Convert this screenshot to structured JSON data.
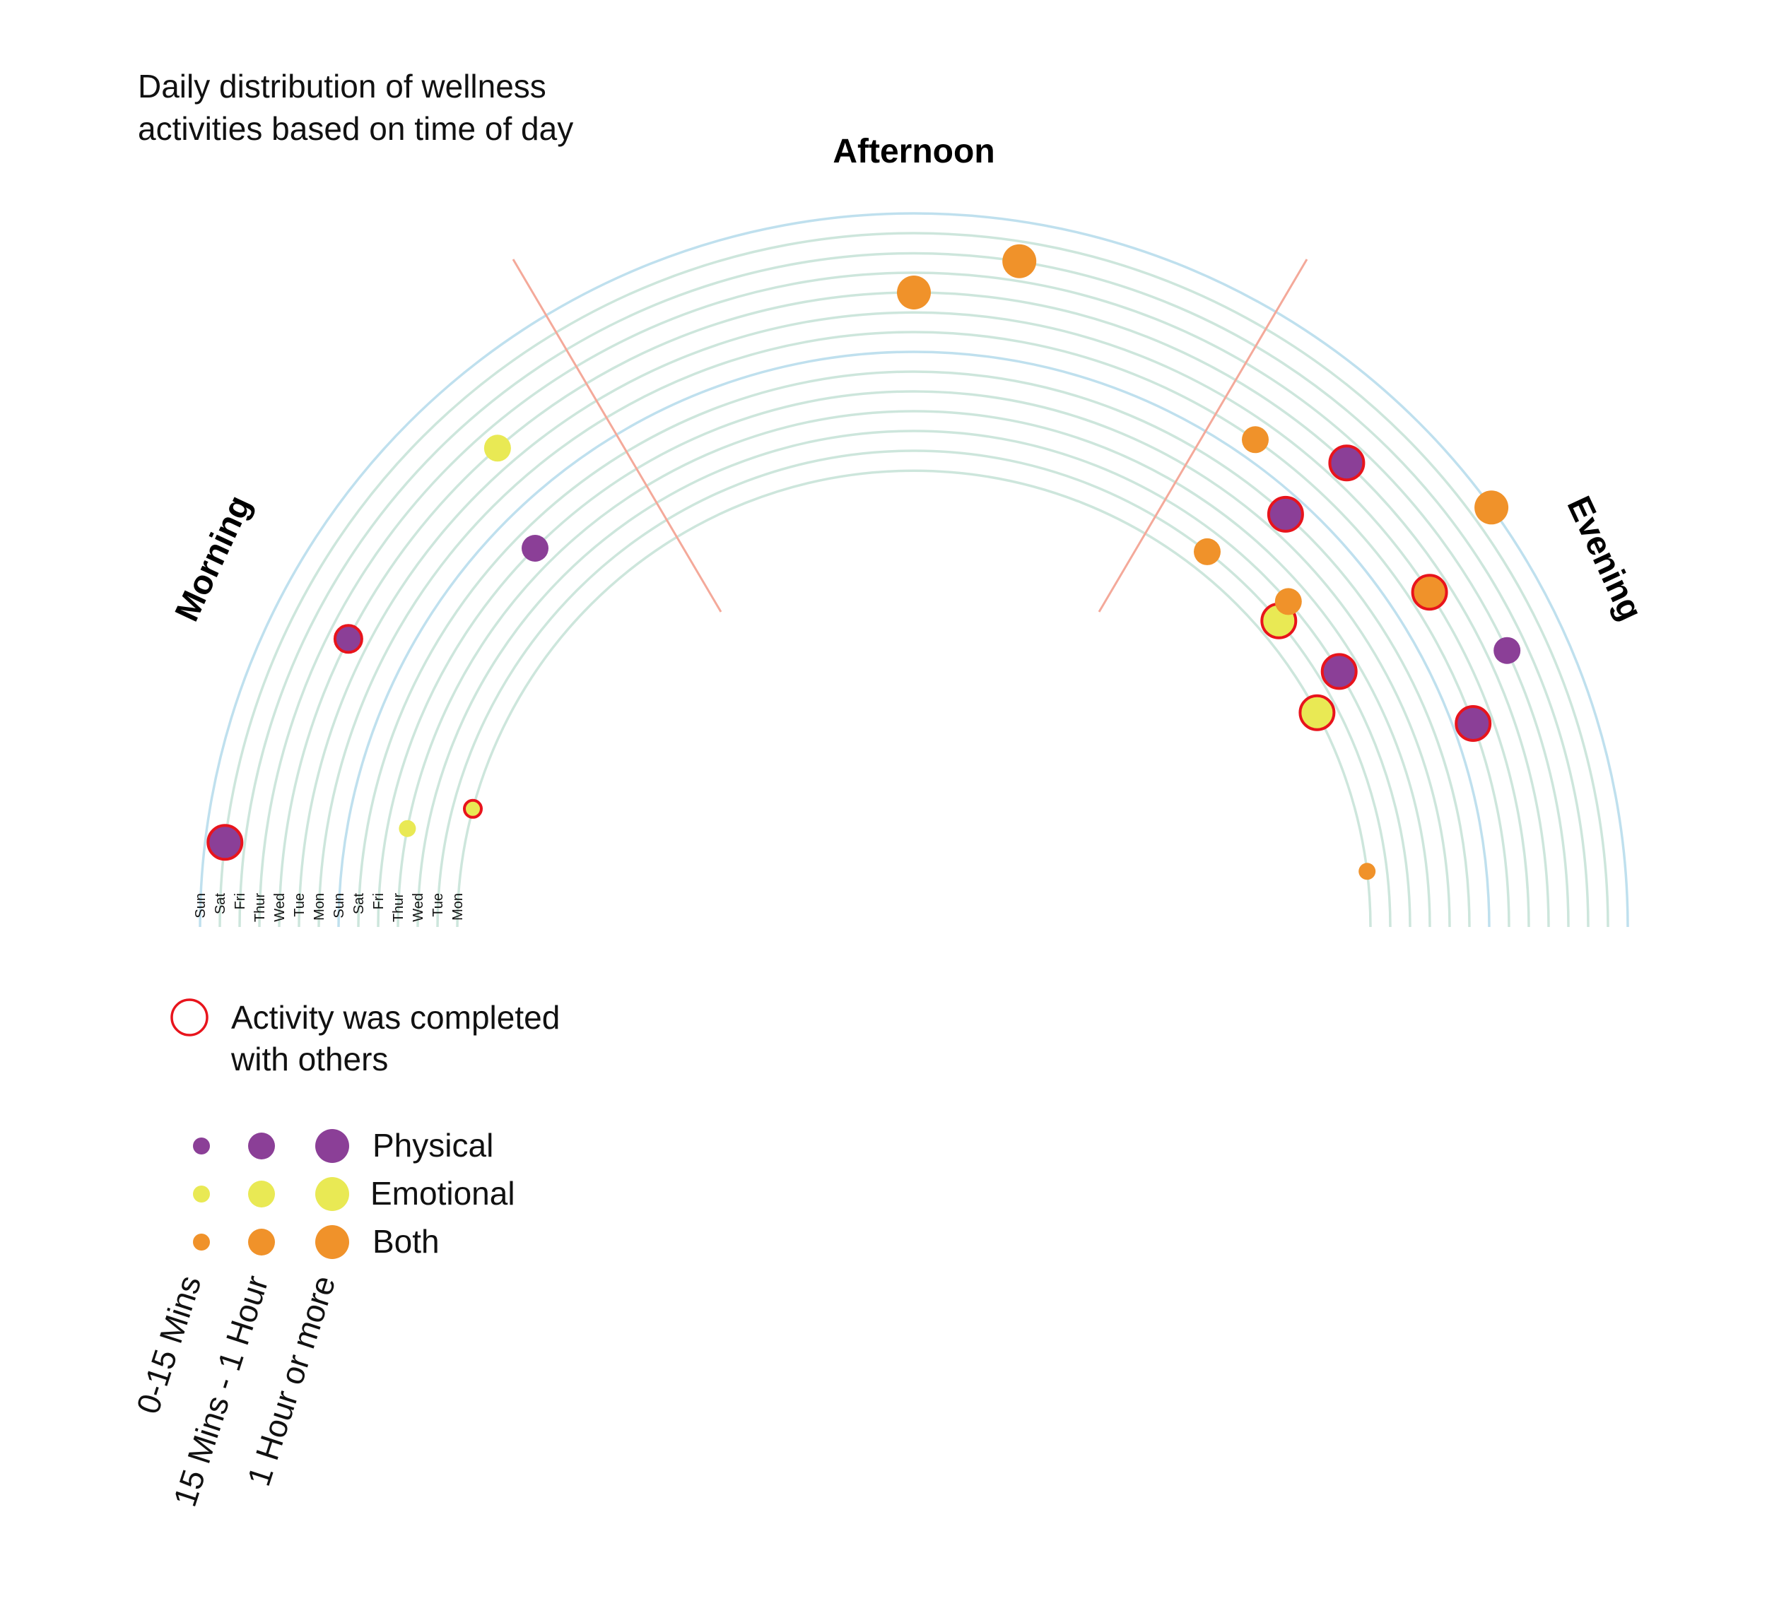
{
  "chart_data": {
    "type": "scatter",
    "title_lines": [
      "Daily distribution of wellness",
      "activities based on time of day"
    ],
    "sections": [
      "Morning",
      "Afternoon",
      "Evening"
    ],
    "ring_days": [
      "Sun",
      "Sat",
      "Fri",
      "Thur",
      "Wed",
      "Tue",
      "Mon",
      "Sun",
      "Sat",
      "Fri",
      "Thur",
      "Wed",
      "Tue",
      "Mon"
    ],
    "categories": {
      "Physical": "#8b3f97",
      "Emotional": "#e9e954",
      "Both": "#f0922a"
    },
    "duration_levels": [
      "0-15 Mins",
      "15 Mins - 1 Hour",
      "1 Hour or more"
    ],
    "others_legend": [
      "Activity was completed",
      "with others"
    ],
    "series": [
      {
        "name": "Physical",
        "points": [
          {
            "ring": 1,
            "angle": 173,
            "size": 2,
            "others": true
          },
          {
            "ring": 4,
            "angle": 153,
            "size": 1,
            "others": true
          },
          {
            "ring": 9,
            "angle": 135,
            "size": 1,
            "others": false
          },
          {
            "ring": 8,
            "angle": 48,
            "size": 2,
            "others": true
          },
          {
            "ring": 4,
            "angle": 47,
            "size": 2,
            "others": true
          },
          {
            "ring": 11,
            "angle": 31,
            "size": 2,
            "others": true
          },
          {
            "ring": 3,
            "angle": 25,
            "size": 1,
            "others": false
          },
          {
            "ring": 6,
            "angle": 20,
            "size": 2,
            "others": true
          }
        ]
      },
      {
        "name": "Emotional",
        "points": [
          {
            "ring": 4,
            "angle": 131,
            "size": 1,
            "others": false
          },
          {
            "ring": 10,
            "angle": 169,
            "size": 0,
            "others": false
          },
          {
            "ring": 13,
            "angle": 165,
            "size": 0,
            "others": true
          },
          {
            "ring": 12,
            "angle": 40,
            "size": 2,
            "others": true
          },
          {
            "ring": 13,
            "angle": 28,
            "size": 2,
            "others": true
          }
        ]
      },
      {
        "name": "Both",
        "points": [
          {
            "ring": 2,
            "angle": 81,
            "size": 2,
            "others": false
          },
          {
            "ring": 4,
            "angle": 90,
            "size": 2,
            "others": false
          },
          {
            "ring": 6,
            "angle": 55,
            "size": 1,
            "others": false
          },
          {
            "ring": 0,
            "angle": 36,
            "size": 2,
            "others": false
          },
          {
            "ring": 12,
            "angle": 52,
            "size": 1,
            "others": false
          },
          {
            "ring": 11,
            "angle": 41,
            "size": 1,
            "others": false
          },
          {
            "ring": 5,
            "angle": 33,
            "size": 2,
            "others": true
          },
          {
            "ring": 13,
            "angle": 7,
            "size": 0,
            "others": false
          }
        ]
      }
    ]
  }
}
